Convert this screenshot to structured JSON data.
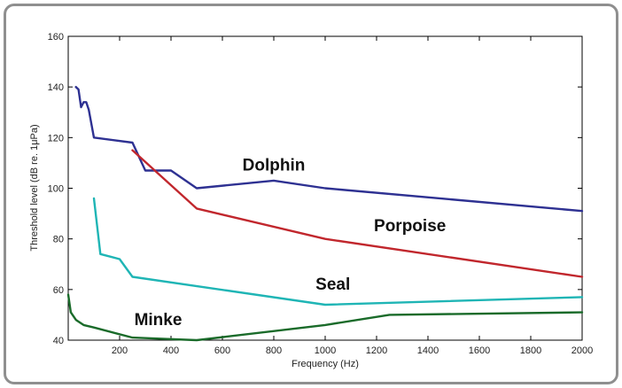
{
  "chart_data": {
    "type": "line",
    "title": "",
    "xlabel": "Frequency (Hz)",
    "ylabel": "Threshold level (dB re. 1μPa)",
    "xlim": [
      0,
      2000
    ],
    "ylim": [
      40,
      160
    ],
    "x_ticks": [
      "200",
      "400",
      "600",
      "800",
      "1000",
      "1200",
      "1400",
      "1600",
      "1800",
      "2000"
    ],
    "y_ticks": [
      "40",
      "60",
      "80",
      "100",
      "120",
      "140",
      "160"
    ],
    "grid": false,
    "legend": "none",
    "series": [
      {
        "name": "Dolphin",
        "color": "#2e3192",
        "x": [
          30,
          40,
          50,
          60,
          70,
          80,
          100,
          250,
          300,
          400,
          500,
          800,
          1000,
          2000
        ],
        "y": [
          140,
          139,
          132,
          134,
          134,
          131,
          120,
          118,
          107,
          107,
          100,
          103,
          100,
          91
        ]
      },
      {
        "name": "Porpoise",
        "color": "#c1272d",
        "x": [
          250,
          500,
          1000,
          2000
        ],
        "y": [
          115,
          92,
          80,
          65
        ]
      },
      {
        "name": "Seal",
        "color": "#1fb5b5",
        "x": [
          100,
          125,
          200,
          250,
          1000,
          2000
        ],
        "y": [
          96,
          74,
          72,
          65,
          54,
          57
        ]
      },
      {
        "name": "Minke",
        "color": "#1a6b2a",
        "x": [
          0,
          10,
          30,
          60,
          100,
          250,
          500,
          1000,
          1250,
          2000
        ],
        "y": [
          58,
          51,
          48,
          46,
          45,
          41,
          40,
          46,
          50,
          51
        ]
      }
    ],
    "annotations": [
      {
        "text": "Dolphin",
        "x": 800,
        "y": 107
      },
      {
        "text": "Porpoise",
        "x": 1330,
        "y": 83
      },
      {
        "text": "Seal",
        "x": 1030,
        "y": 60
      },
      {
        "text": "Minke",
        "x": 350,
        "y": 46
      }
    ]
  }
}
